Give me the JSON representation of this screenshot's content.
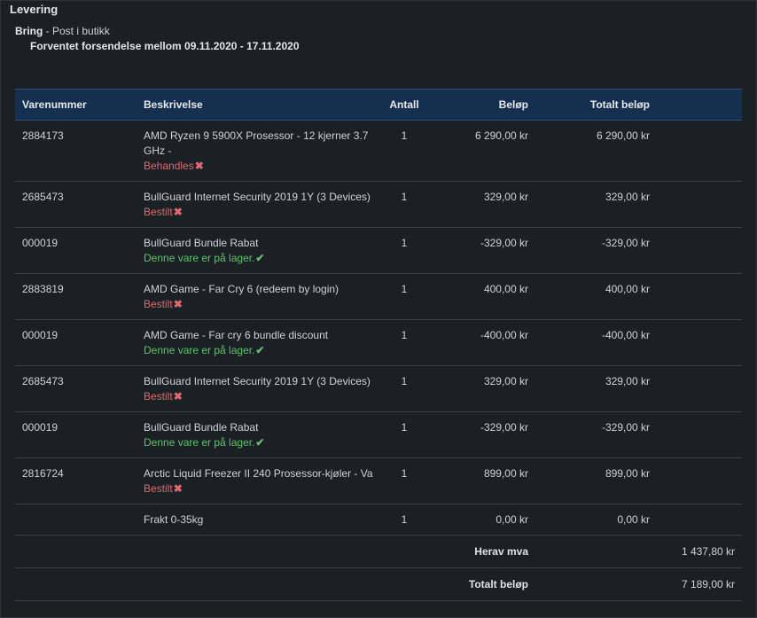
{
  "section_title": "Levering",
  "carrier": {
    "name": "Bring",
    "method": " - Post i butikk"
  },
  "shipping_window": "Forventet forsendelse mellom 09.11.2020 - 17.11.2020",
  "colors": {
    "header_bg": "#15304f",
    "status_red": "#e2686b",
    "status_green": "#5fc26a"
  },
  "table": {
    "headers": {
      "number": "Varenummer",
      "description": "Beskrivelse",
      "quantity": "Antall",
      "amount": "Beløp",
      "total": "Totalt beløp"
    },
    "rows": [
      {
        "number": "2884173",
        "description": "AMD Ryzen 9 5900X Prosessor - 12 kjerner 3.7 GHz -",
        "status": "Behandles",
        "status_type": "red",
        "status_icon": "✖",
        "quantity": "1",
        "amount": "6 290,00 kr",
        "total": "6 290,00 kr"
      },
      {
        "number": "2685473",
        "description": "BullGuard Internet Security 2019 1Y (3 Devices)",
        "status": "Bestilt",
        "status_type": "red",
        "status_icon": "✖",
        "quantity": "1",
        "amount": "329,00 kr",
        "total": "329,00 kr"
      },
      {
        "number": "000019",
        "description": "BullGuard Bundle Rabat",
        "status": "Denne vare er på lager.",
        "status_type": "green",
        "status_icon": "✔",
        "quantity": "1",
        "amount": "-329,00 kr",
        "total": "-329,00 kr"
      },
      {
        "number": "2883819",
        "description": "AMD Game - Far Cry 6 (redeem by login)",
        "status": "Bestilt",
        "status_type": "red",
        "status_icon": "✖",
        "quantity": "1",
        "amount": "400,00 kr",
        "total": "400,00 kr"
      },
      {
        "number": "000019",
        "description": "AMD Game - Far cry 6 bundle discount",
        "status": "Denne vare er på lager.",
        "status_type": "green",
        "status_icon": "✔",
        "quantity": "1",
        "amount": "-400,00 kr",
        "total": "-400,00 kr"
      },
      {
        "number": "2685473",
        "description": "BullGuard Internet Security 2019 1Y (3 Devices)",
        "status": "Bestilt",
        "status_type": "red",
        "status_icon": "✖",
        "quantity": "1",
        "amount": "329,00 kr",
        "total": "329,00 kr"
      },
      {
        "number": "000019",
        "description": "BullGuard Bundle Rabat",
        "status": "Denne vare er på lager.",
        "status_type": "green",
        "status_icon": "✔",
        "quantity": "1",
        "amount": "-329,00 kr",
        "total": "-329,00 kr"
      },
      {
        "number": "2816724",
        "description": "Arctic Liquid Freezer II 240 Prosessor-kjøler - Va",
        "status": "Bestilt",
        "status_type": "red",
        "status_icon": "✖",
        "quantity": "1",
        "amount": "899,00 kr",
        "total": "899,00 kr"
      },
      {
        "number": "",
        "description": "Frakt 0-35kg",
        "status": "",
        "status_type": "",
        "status_icon": "",
        "quantity": "1",
        "amount": "0,00 kr",
        "total": "0,00 kr"
      }
    ],
    "summary": [
      {
        "label": "Herav mva",
        "value": "1 437,80 kr"
      },
      {
        "label": "Totalt beløp",
        "value": "7 189,00 kr"
      }
    ]
  }
}
